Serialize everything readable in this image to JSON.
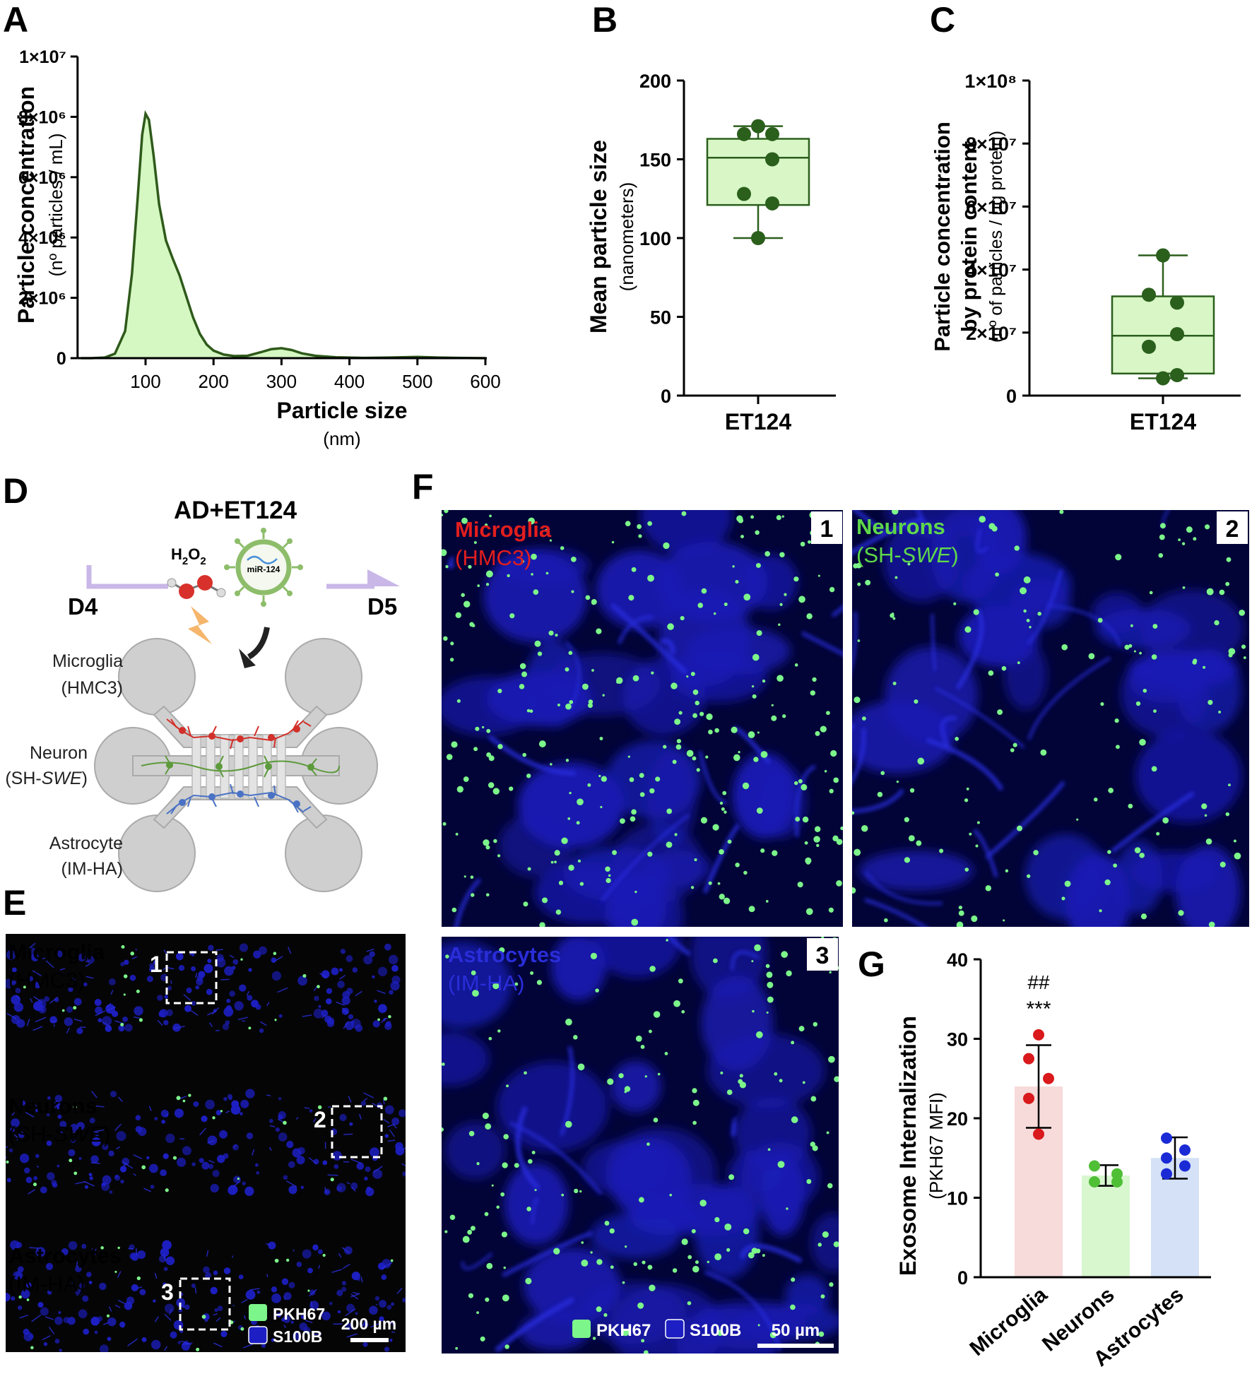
{
  "panel_letters": {
    "a": "A",
    "b": "B",
    "c": "C",
    "d": "D",
    "e": "E",
    "f": "F",
    "g": "G"
  },
  "colors": {
    "curve": "#2e5a1a",
    "fill_green": "#d5f7c2",
    "box_fill": "#d8f6c6",
    "dot_green": "#2b5f1c",
    "micro_bar": "#f7dada",
    "neuron_bar": "#d8f7cf",
    "astro_bar": "#d4e1f6",
    "micro_dot": "#d9191c",
    "neuron_dot": "#4fbf36",
    "astro_dot": "#1a2bd6",
    "img_bg": "#020438",
    "cell_blue": "#1d1fc4",
    "pkh_green": "#7cf58a",
    "label_red": "#e21e1e",
    "label_green": "#5fd84a",
    "label_blue": "#2a2dd8"
  },
  "chart_data": [
    {
      "panel": "A",
      "type": "area",
      "xlabel": "Particle size",
      "xunit": "(nm)",
      "ylabel": "Particle concentration",
      "yunit": "(nº particles / mL)",
      "x_ticks": [
        "100",
        "200",
        "300",
        "400",
        "500",
        "600"
      ],
      "y_ticks": [
        "0",
        "2×10⁶",
        "4×10⁶",
        "6×10⁶",
        "8×10⁶",
        "1×10⁷"
      ],
      "x": [
        5,
        20,
        40,
        55,
        70,
        80,
        88,
        95,
        100,
        105,
        112,
        120,
        130,
        140,
        150,
        160,
        170,
        180,
        190,
        200,
        215,
        230,
        250,
        270,
        285,
        300,
        315,
        330,
        350,
        380,
        420,
        460,
        500,
        530,
        560,
        600
      ],
      "y": [
        0,
        0,
        20000,
        150000,
        900000,
        2800000,
        5200000,
        7400000,
        8100000,
        7900000,
        6700000,
        5100000,
        3900000,
        3300000,
        2750000,
        2050000,
        1350000,
        800000,
        450000,
        250000,
        120000,
        70000,
        80000,
        200000,
        300000,
        330000,
        270000,
        160000,
        80000,
        30000,
        10000,
        20000,
        40000,
        20000,
        10000,
        0
      ],
      "xlim": [
        0,
        600
      ],
      "ylim": [
        0,
        10000000
      ]
    },
    {
      "panel": "B",
      "type": "box",
      "category": "ET124",
      "ylabel": "Mean particle size",
      "yunit": "(nanometers)",
      "y_ticks": [
        "0",
        "50",
        "100",
        "150",
        "200"
      ],
      "ylim": [
        0,
        200
      ],
      "box": {
        "min": 100,
        "q1": 121,
        "median": 151,
        "q3": 163,
        "max": 171
      },
      "points": [
        171,
        166,
        166,
        150,
        128,
        122,
        100
      ]
    },
    {
      "panel": "C",
      "type": "box",
      "category": "ET124",
      "ylabel": "Particle concentration",
      "ylabel2": "by protein content",
      "yunit": "(nº of particles / µg protein)",
      "y_ticks": [
        "0",
        "2×10⁷",
        "4×10⁷",
        "6×10⁷",
        "8×10⁷",
        "1×10⁸"
      ],
      "ylim": [
        0,
        100000000
      ],
      "box": {
        "min": 5500000,
        "q1": 7000000,
        "median": 19000000,
        "q3": 31500000,
        "max": 44500000
      },
      "points": [
        44500000,
        32000000,
        29500000,
        19500000,
        15500000,
        6500000,
        5500000
      ]
    },
    {
      "panel": "G",
      "type": "bar",
      "ylabel": "Exosome Internalization",
      "yunit": "(PKH67 MFI)",
      "categories": [
        "Microglia",
        "Neurons",
        "Astrocytes"
      ],
      "values": [
        24,
        12.8,
        15
      ],
      "errors": [
        5.2,
        1.3,
        2.6
      ],
      "points": [
        [
          30.5,
          27.5,
          25,
          22.5,
          18
        ],
        [
          14,
          13,
          12,
          12
        ],
        [
          17.5,
          16,
          15,
          14,
          13
        ]
      ],
      "y_ticks": [
        "0",
        "10",
        "20",
        "30",
        "40"
      ],
      "ylim": [
        0,
        40
      ],
      "annotations": [
        "##",
        "***"
      ]
    }
  ],
  "panel_d": {
    "title": "AD+ET124",
    "day_start": "D4",
    "day_end": "D5",
    "h2o2_label": "H",
    "h2o2_sub1": "2",
    "h2o2_mid": "O",
    "h2o2_sub2": "2",
    "exosome_label": "miR-124",
    "microglia_label": "Microglia",
    "microglia_line": "(HMC3)",
    "neuron_label": "Neuron",
    "neuron_prefix": "(SH-",
    "neuron_italic": "SWE",
    "neuron_suffix": ")",
    "astro_label": "Astrocyte",
    "astro_line": "(IM-HA)"
  },
  "panel_e": {
    "microglia": "Microglia",
    "microglia_line": "(HMC3)",
    "neurons": "Neurons",
    "neurons_prefix": "(SH-",
    "neurons_italic": "SWE",
    "neurons_suffix": ")",
    "astrocytes": "Astrocytes",
    "astrocytes_line": "(IM-HA)",
    "roi1": "1",
    "roi2": "2",
    "roi3": "3",
    "legend1": "PKH67",
    "legend2": "S100B",
    "scale": "200 µm"
  },
  "panel_f": {
    "img1_num": "1",
    "img1_label": "Microglia",
    "img1_line": "(HMC3)",
    "img2_num": "2",
    "img2_label": "Neurons",
    "img2_prefix": "(SH-",
    "img2_italic": "SWE",
    "img2_suffix": ")",
    "img3_num": "3",
    "img3_label": "Astrocytes",
    "img3_line": "(IM-HA)",
    "legend1": "PKH67",
    "legend2": "S100B",
    "scale": "50 µm"
  }
}
